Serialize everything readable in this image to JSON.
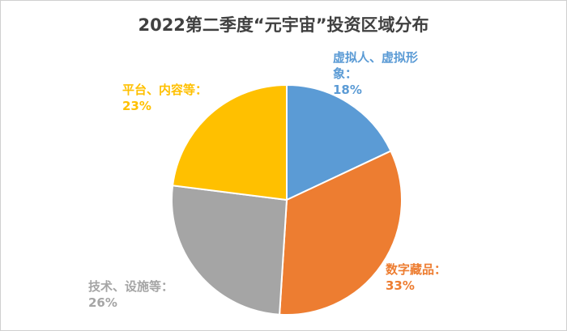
{
  "chart_data": {
    "type": "pie",
    "title": "2022第二季度“元宇宙”投资区域分布",
    "slices": [
      {
        "name": "虚拟人、虚拟形象：",
        "value": 18,
        "label": "18%",
        "color": "#5B9BD5"
      },
      {
        "name": "数字藏品：",
        "value": 33,
        "label": "33%",
        "color": "#ED7D31"
      },
      {
        "name": "技术、设施等：",
        "value": 26,
        "label": "26%",
        "color": "#A5A5A5"
      },
      {
        "name": "平台、内容等：",
        "value": 23,
        "label": "23%",
        "color": "#FFC000"
      }
    ]
  }
}
